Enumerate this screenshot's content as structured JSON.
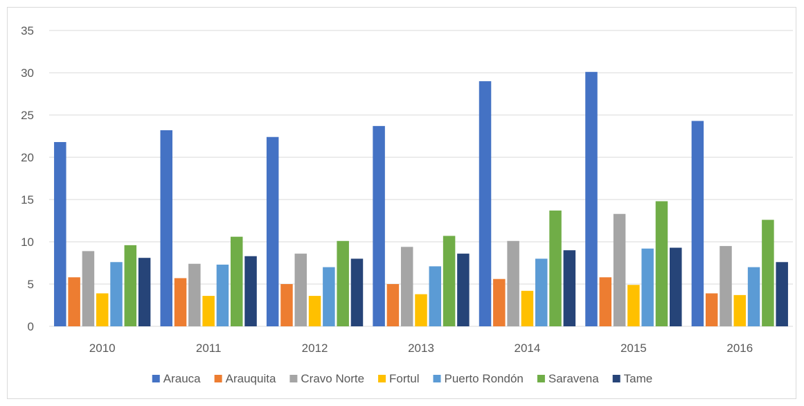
{
  "chart_data": {
    "type": "bar",
    "title": "",
    "xlabel": "",
    "ylabel": "",
    "categories": [
      "2010",
      "2011",
      "2012",
      "2013",
      "2014",
      "2015",
      "2016"
    ],
    "ylim": [
      0,
      35
    ],
    "yticks": [
      0,
      5,
      10,
      15,
      20,
      25,
      30,
      35
    ],
    "grid": true,
    "legend_position": "bottom",
    "series": [
      {
        "name": "Arauca",
        "color": "#4472c4",
        "values": [
          21.8,
          23.2,
          22.4,
          23.7,
          29.0,
          30.1,
          24.3
        ]
      },
      {
        "name": "Arauquita",
        "color": "#ed7d31",
        "values": [
          5.8,
          5.7,
          5.0,
          5.0,
          5.6,
          5.8,
          3.9
        ]
      },
      {
        "name": "Cravo Norte",
        "color": "#a5a5a5",
        "values": [
          8.9,
          7.4,
          8.6,
          9.4,
          10.1,
          13.3,
          9.5
        ]
      },
      {
        "name": "Fortul",
        "color": "#ffc000",
        "values": [
          3.9,
          3.6,
          3.6,
          3.8,
          4.2,
          4.9,
          3.7
        ]
      },
      {
        "name": "Puerto Rondón",
        "color": "#5b9bd5",
        "values": [
          7.6,
          7.3,
          7.0,
          7.1,
          8.0,
          9.2,
          7.0
        ]
      },
      {
        "name": "Saravena",
        "color": "#70ad47",
        "values": [
          9.6,
          10.6,
          10.1,
          10.7,
          13.7,
          14.8,
          12.6
        ]
      },
      {
        "name": "Tame",
        "color": "#264478",
        "values": [
          8.1,
          8.3,
          8.0,
          8.6,
          9.0,
          9.3,
          7.6
        ]
      }
    ]
  }
}
